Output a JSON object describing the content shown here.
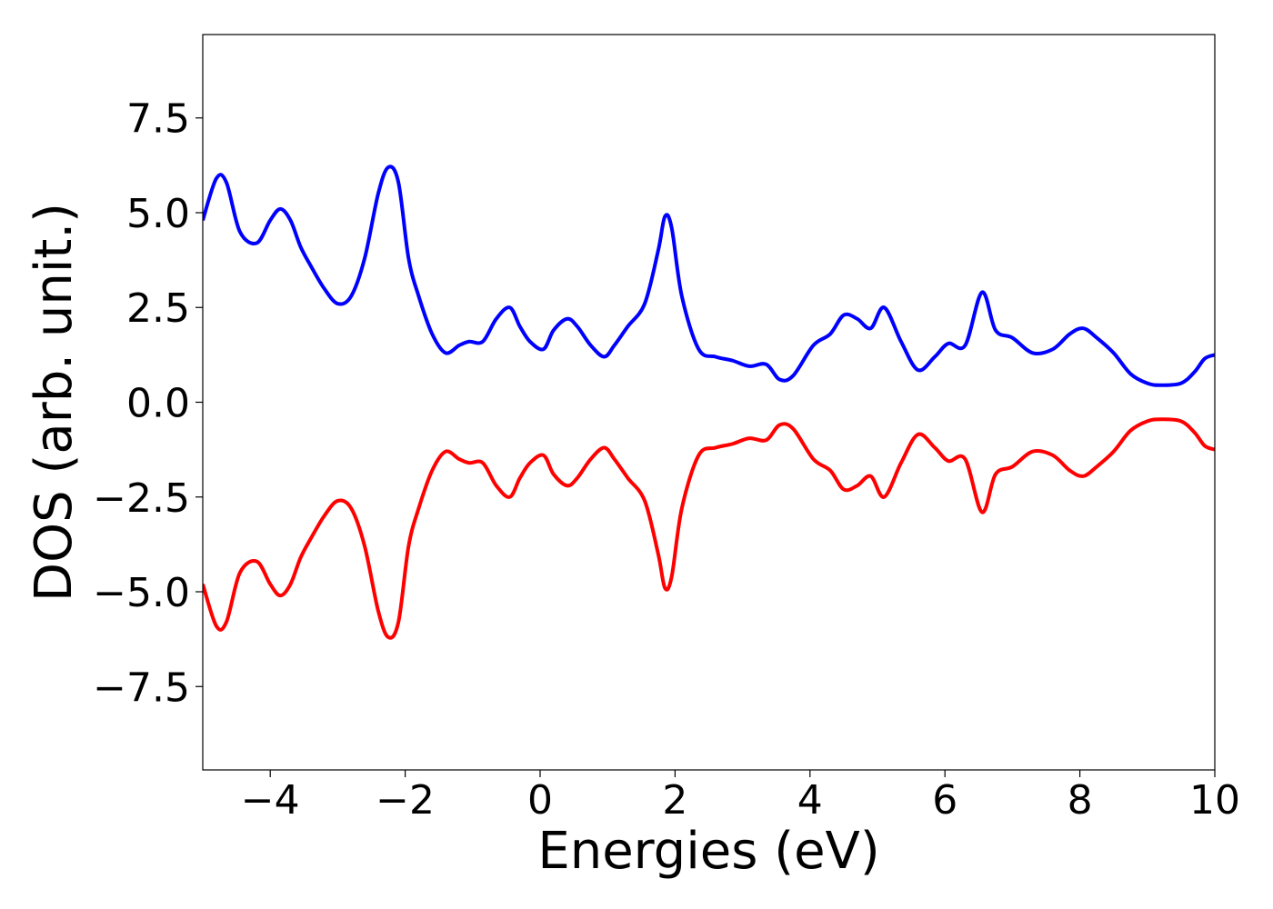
{
  "chart_data": {
    "type": "line",
    "title": "",
    "xlabel": "Energies (eV)",
    "ylabel": "DOS (arb. unit.)",
    "xlim": [
      -5,
      10
    ],
    "ylim": [
      -9.7,
      9.7
    ],
    "grid": false,
    "legend": "none",
    "x_ticks": [
      -4,
      -2,
      0,
      2,
      4,
      6,
      8,
      10
    ],
    "x_tick_labels": [
      "−4",
      "−2",
      "0",
      "2",
      "4",
      "6",
      "8",
      "10"
    ],
    "y_ticks": [
      -7.5,
      -5.0,
      -2.5,
      0.0,
      2.5,
      5.0,
      7.5
    ],
    "y_tick_labels": [
      "−7.5",
      "−5.0",
      "−2.5",
      "0.0",
      "2.5",
      "5.0",
      "7.5"
    ],
    "series": [
      {
        "color": "#0000ff",
        "x": [
          -5.0,
          -4.8,
          -4.65,
          -4.45,
          -4.2,
          -4.0,
          -3.85,
          -3.7,
          -3.55,
          -3.4,
          -3.2,
          -3.0,
          -2.8,
          -2.6,
          -2.4,
          -2.25,
          -2.1,
          -1.95,
          -1.8,
          -1.6,
          -1.4,
          -1.2,
          -1.05,
          -0.85,
          -0.65,
          -0.45,
          -0.3,
          -0.15,
          0.05,
          0.2,
          0.4,
          0.55,
          0.75,
          0.95,
          1.1,
          1.3,
          1.55,
          1.75,
          1.85,
          1.95,
          2.1,
          2.35,
          2.6,
          2.85,
          3.1,
          3.35,
          3.55,
          3.75,
          4.05,
          4.3,
          4.5,
          4.7,
          4.9,
          5.1,
          5.35,
          5.6,
          5.85,
          6.05,
          6.3,
          6.55,
          6.75,
          7.0,
          7.3,
          7.6,
          7.85,
          8.05,
          8.25,
          8.5,
          8.75,
          9.0,
          9.2,
          9.5,
          9.7,
          9.85,
          10.0
        ],
        "y": [
          4.8,
          5.9,
          5.8,
          4.5,
          4.2,
          4.8,
          5.1,
          4.8,
          4.1,
          3.6,
          3.0,
          2.6,
          2.8,
          3.8,
          5.5,
          6.2,
          5.8,
          3.8,
          2.8,
          1.8,
          1.3,
          1.5,
          1.6,
          1.6,
          2.2,
          2.5,
          2.0,
          1.6,
          1.4,
          1.9,
          2.2,
          2.0,
          1.5,
          1.2,
          1.5,
          2.0,
          2.6,
          4.0,
          4.9,
          4.6,
          2.8,
          1.4,
          1.2,
          1.1,
          0.95,
          1.0,
          0.6,
          0.7,
          1.5,
          1.8,
          2.3,
          2.2,
          1.95,
          2.5,
          1.6,
          0.85,
          1.2,
          1.55,
          1.5,
          2.9,
          1.9,
          1.7,
          1.3,
          1.4,
          1.8,
          1.95,
          1.7,
          1.3,
          0.75,
          0.5,
          0.45,
          0.5,
          0.8,
          1.15,
          1.25
        ]
      },
      {
        "color": "#ff0000",
        "x": [
          -5.0,
          -4.8,
          -4.65,
          -4.45,
          -4.2,
          -4.0,
          -3.85,
          -3.7,
          -3.55,
          -3.4,
          -3.2,
          -3.0,
          -2.8,
          -2.6,
          -2.4,
          -2.25,
          -2.1,
          -1.95,
          -1.8,
          -1.6,
          -1.4,
          -1.2,
          -1.05,
          -0.85,
          -0.65,
          -0.45,
          -0.3,
          -0.15,
          0.05,
          0.2,
          0.4,
          0.55,
          0.75,
          0.95,
          1.1,
          1.3,
          1.55,
          1.75,
          1.85,
          1.95,
          2.1,
          2.35,
          2.6,
          2.85,
          3.1,
          3.35,
          3.55,
          3.75,
          4.05,
          4.3,
          4.5,
          4.7,
          4.9,
          5.1,
          5.35,
          5.6,
          5.85,
          6.05,
          6.3,
          6.55,
          6.75,
          7.0,
          7.3,
          7.6,
          7.85,
          8.05,
          8.25,
          8.5,
          8.75,
          9.0,
          9.2,
          9.5,
          9.7,
          9.85,
          10.0
        ],
        "y": [
          -4.8,
          -5.9,
          -5.8,
          -4.5,
          -4.2,
          -4.8,
          -5.1,
          -4.8,
          -4.1,
          -3.6,
          -3.0,
          -2.6,
          -2.8,
          -3.8,
          -5.5,
          -6.2,
          -5.8,
          -3.8,
          -2.8,
          -1.8,
          -1.3,
          -1.5,
          -1.6,
          -1.6,
          -2.2,
          -2.5,
          -2.0,
          -1.6,
          -1.4,
          -1.9,
          -2.2,
          -2.0,
          -1.5,
          -1.2,
          -1.5,
          -2.0,
          -2.6,
          -4.0,
          -4.9,
          -4.6,
          -2.8,
          -1.4,
          -1.2,
          -1.1,
          -0.95,
          -1.0,
          -0.6,
          -0.7,
          -1.5,
          -1.8,
          -2.3,
          -2.2,
          -1.95,
          -2.5,
          -1.6,
          -0.85,
          -1.2,
          -1.55,
          -1.5,
          -2.9,
          -1.9,
          -1.7,
          -1.3,
          -1.4,
          -1.8,
          -1.95,
          -1.7,
          -1.3,
          -0.75,
          -0.5,
          -0.45,
          -0.5,
          -0.8,
          -1.15,
          -1.25
        ]
      }
    ]
  }
}
